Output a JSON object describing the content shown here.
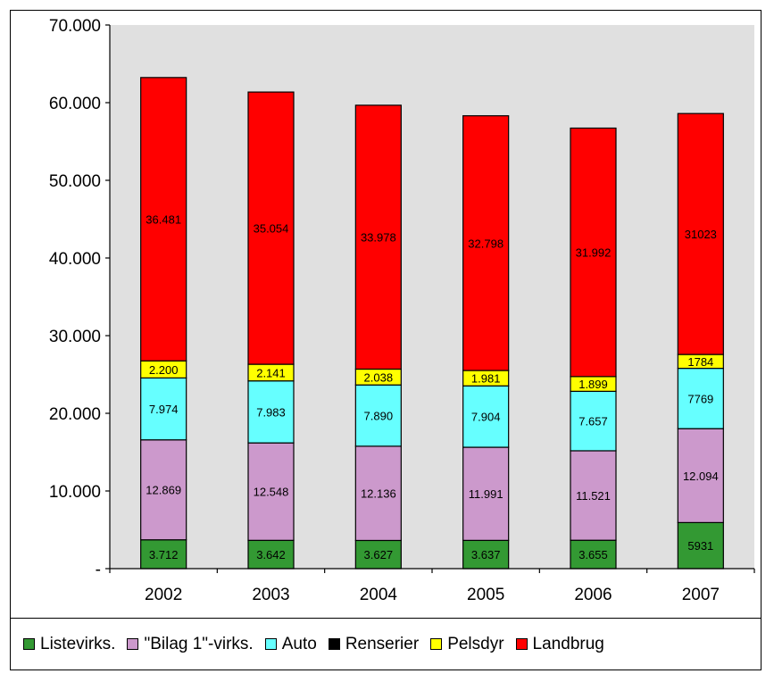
{
  "chart_data": {
    "type": "bar",
    "stacked": true,
    "categories": [
      "2002",
      "2003",
      "2004",
      "2005",
      "2006",
      "2007"
    ],
    "ylim": [
      0,
      70000
    ],
    "yticks": [
      0,
      10000,
      20000,
      30000,
      40000,
      50000,
      60000,
      70000
    ],
    "ytick_labels": [
      "-",
      "10.000",
      "20.000",
      "30.000",
      "40.000",
      "50.000",
      "60.000",
      "70.000"
    ],
    "grid": false,
    "legend_position": "bottom",
    "plot_background": "#e0e0e0",
    "series": [
      {
        "name": "Listevirks.",
        "color": "#339933",
        "values": [
          3712,
          3642,
          3627,
          3637,
          3655,
          5931
        ],
        "labels": [
          "3.712",
          "3.642",
          "3.627",
          "3.637",
          "3.655",
          "5931"
        ]
      },
      {
        "name": "\"Bilag 1\"-virks.",
        "color": "#cc99cc",
        "values": [
          12869,
          12548,
          12136,
          11991,
          11521,
          12094
        ],
        "labels": [
          "12.869",
          "12.548",
          "12.136",
          "11.991",
          "11.521",
          "12.094"
        ]
      },
      {
        "name": "Auto",
        "color": "#66ffff",
        "values": [
          7974,
          7983,
          7890,
          7904,
          7657,
          7769
        ],
        "labels": [
          "7.974",
          "7.983",
          "7.890",
          "7.904",
          "7.657",
          "7769"
        ]
      },
      {
        "name": "Renserier",
        "color": "#000000",
        "values": [
          0,
          0,
          0,
          0,
          0,
          0
        ],
        "labels": [
          "",
          "",
          "",
          "",
          "",
          ""
        ]
      },
      {
        "name": "Pelsdyr",
        "color": "#ffff00",
        "values": [
          2200,
          2141,
          2038,
          1981,
          1899,
          1784
        ],
        "labels": [
          "2.200",
          "2.141",
          "2.038",
          "1.981",
          "1.899",
          "1784"
        ]
      },
      {
        "name": "Landbrug",
        "color": "#ff0000",
        "values": [
          36481,
          35054,
          33978,
          32798,
          31992,
          31023
        ],
        "labels": [
          "36.481",
          "35.054",
          "33.978",
          "32.798",
          "31.992",
          "31023"
        ]
      }
    ]
  }
}
